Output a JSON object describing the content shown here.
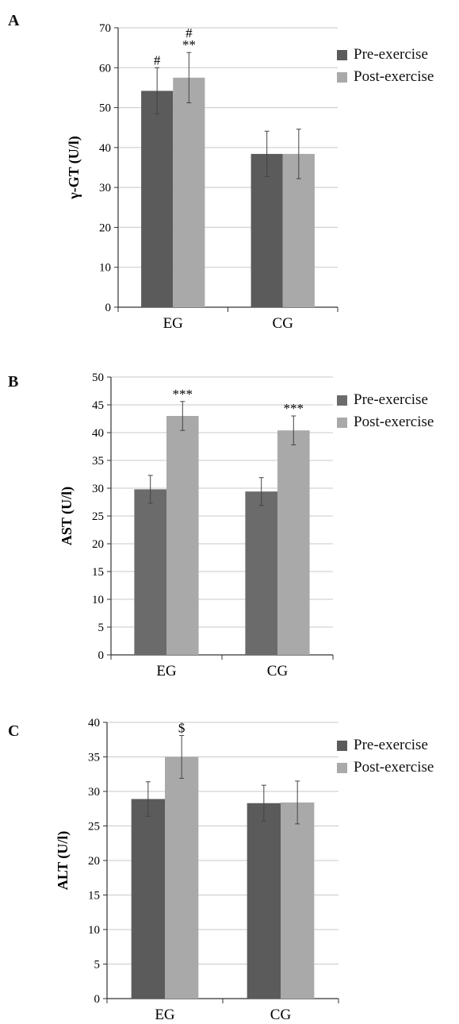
{
  "legend": {
    "pre_label": "Pre-exercise",
    "post_label": "Post-exercise",
    "pre_color": "#5b5b5b",
    "post_color": "#a9a9a9"
  },
  "chart_data": [
    {
      "type": "bar",
      "panel": "A",
      "ylabel": "γ-GT (U/l)",
      "categories": [
        "EG",
        "CG"
      ],
      "ylim": [
        0,
        70
      ],
      "yticks": [
        0,
        10,
        20,
        30,
        40,
        50,
        60,
        70
      ],
      "grid": true,
      "legend_position": "top-right",
      "series": [
        {
          "name": "Pre-exercise",
          "values": [
            54.2,
            38.4
          ],
          "error": [
            5.8,
            5.7
          ],
          "color": "#5b5b5b"
        },
        {
          "name": "Post-exercise",
          "values": [
            57.5,
            38.4
          ],
          "error": [
            6.3,
            6.2
          ],
          "color": "#a9a9a9"
        }
      ],
      "annotations": [
        {
          "series": 0,
          "category": 0,
          "lines": [
            "#"
          ]
        },
        {
          "series": 1,
          "category": 0,
          "lines": [
            "#",
            "**"
          ]
        }
      ]
    },
    {
      "type": "bar",
      "panel": "B",
      "ylabel": "AST (U/l)",
      "categories": [
        "EG",
        "CG"
      ],
      "ylim": [
        0,
        50
      ],
      "yticks": [
        0,
        5,
        10,
        15,
        20,
        25,
        30,
        35,
        40,
        45,
        50
      ],
      "grid": true,
      "legend_position": "top-right",
      "series": [
        {
          "name": "Pre-exercise",
          "values": [
            29.8,
            29.4
          ],
          "error": [
            2.5,
            2.5
          ],
          "color": "#6b6b6b"
        },
        {
          "name": "Post-exercise",
          "values": [
            43.0,
            40.4
          ],
          "error": [
            2.6,
            2.6
          ],
          "color": "#a9a9a9"
        }
      ],
      "annotations": [
        {
          "series": 1,
          "category": 0,
          "lines": [
            "***"
          ]
        },
        {
          "series": 1,
          "category": 1,
          "lines": [
            "***"
          ]
        }
      ]
    },
    {
      "type": "bar",
      "panel": "C",
      "ylabel": "ALT (U/l)",
      "categories": [
        "EG",
        "CG"
      ],
      "ylim": [
        0,
        40
      ],
      "yticks": [
        0,
        5,
        10,
        15,
        20,
        25,
        30,
        35,
        40
      ],
      "grid": true,
      "legend_position": "top-right",
      "series": [
        {
          "name": "Pre-exercise",
          "values": [
            28.9,
            28.3
          ],
          "error": [
            2.5,
            2.6
          ],
          "color": "#5b5b5b"
        },
        {
          "name": "Post-exercise",
          "values": [
            35.0,
            28.4
          ],
          "error": [
            3.1,
            3.1
          ],
          "color": "#a9a9a9"
        }
      ],
      "annotations": [
        {
          "series": 1,
          "category": 0,
          "lines": [
            "$"
          ]
        }
      ]
    }
  ]
}
